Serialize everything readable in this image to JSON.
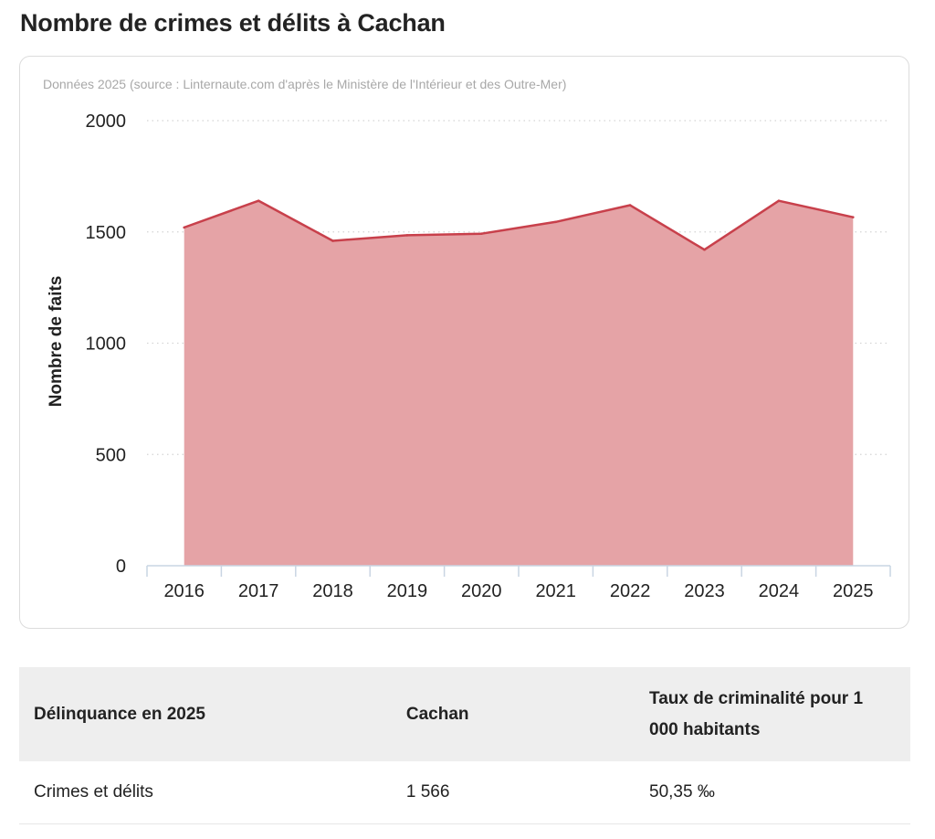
{
  "page": {
    "title": "Nombre de crimes et délits à Cachan"
  },
  "chart_data": {
    "type": "area",
    "subtitle": "Données 2025 (source : Linternaute.com d'après le Ministère de l'Intérieur et des Outre-Mer)",
    "ylabel": "Nombre de faits",
    "xlabel": "",
    "categories": [
      "2016",
      "2017",
      "2018",
      "2019",
      "2020",
      "2021",
      "2022",
      "2023",
      "2024",
      "2025"
    ],
    "series": [
      {
        "values": [
          1520,
          1640,
          1460,
          1485,
          1492,
          1545,
          1620,
          1420,
          1640,
          1566
        ]
      }
    ],
    "ylim": [
      0,
      2000
    ],
    "yticks": [
      "0",
      "500",
      "1000",
      "1500",
      "2000"
    ],
    "grid": "horizontal dotted",
    "colors": {
      "fill": "#e5a3a6",
      "line": "#c8404b"
    }
  },
  "table": {
    "headers": [
      "Délinquance en 2025",
      "Cachan",
      "Taux de criminalité pour 1 000 habitants"
    ],
    "rows": [
      [
        "Crimes et délits",
        "1 566",
        "50,35 ‰"
      ]
    ]
  }
}
